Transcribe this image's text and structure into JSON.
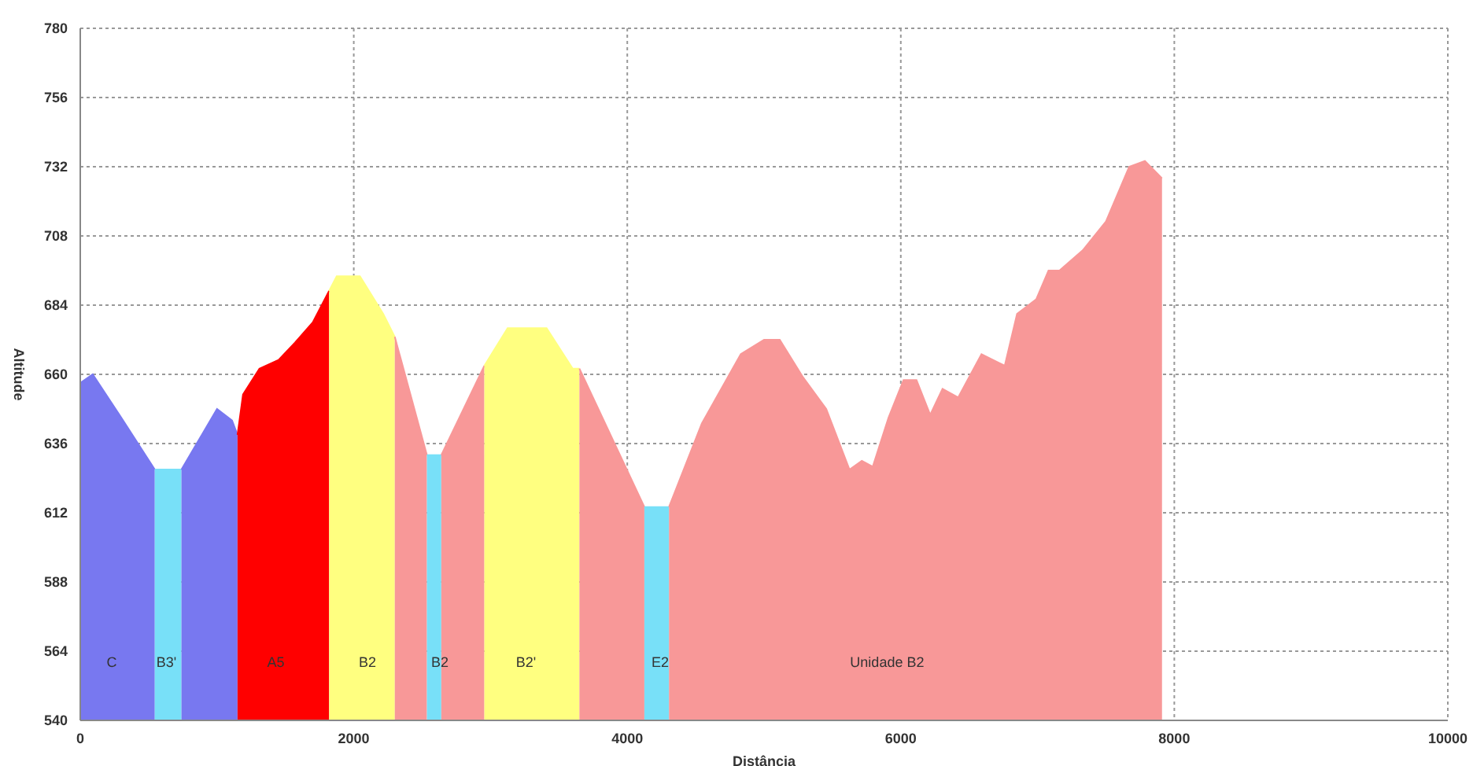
{
  "chart_data": {
    "type": "area",
    "xlabel": "Distância",
    "ylabel": "Altitude",
    "xlim": [
      0,
      10000
    ],
    "xticks": [
      0,
      2000,
      4000,
      6000,
      8000,
      10000
    ],
    "ylim": [
      540,
      780
    ],
    "yticks": [
      540,
      564,
      588,
      612,
      636,
      660,
      684,
      708,
      732,
      756,
      780
    ],
    "grid": true,
    "series": [
      {
        "color": "#7878f0",
        "x": [
          0,
          91,
          300,
          545
        ],
        "values": [
          657,
          660,
          645,
          627
        ]
      },
      {
        "color": "#78e0f8",
        "x": [
          545,
          740
        ],
        "values": [
          627,
          627
        ]
      },
      {
        "color": "#7878f0",
        "x": [
          740,
          1000,
          1110,
          1150
        ],
        "values": [
          627,
          648,
          644,
          639
        ]
      },
      {
        "color": "#ff0000",
        "x": [
          1150,
          1190,
          1310,
          1450,
          1570,
          1700,
          1820
        ],
        "values": [
          639,
          653,
          662,
          665,
          671,
          678,
          689
        ]
      },
      {
        "color": "#ffff80",
        "x": [
          1820,
          1875,
          2045,
          2215,
          2300
        ],
        "values": [
          689,
          694,
          694,
          681,
          673
        ]
      },
      {
        "color": "#f89898",
        "x": [
          2300,
          2535
        ],
        "values": [
          673,
          632
        ]
      },
      {
        "color": "#78e0f8",
        "x": [
          2535,
          2640
        ],
        "values": [
          632,
          632
        ]
      },
      {
        "color": "#f89898",
        "x": [
          2640,
          2955
        ],
        "values": [
          632,
          663
        ]
      },
      {
        "color": "#ffff80",
        "x": [
          2955,
          3125,
          3410,
          3600,
          3650
        ],
        "values": [
          663,
          676,
          676,
          662,
          662
        ]
      },
      {
        "color": "#f89898",
        "x": [
          3650,
          4125
        ],
        "values": [
          662,
          614
        ]
      },
      {
        "color": "#78e0f8",
        "x": [
          4125,
          4305
        ],
        "values": [
          614,
          614
        ]
      },
      {
        "color": "#f89898",
        "x": [
          4305,
          4545,
          4830,
          5000,
          5115,
          5285,
          5455,
          5625,
          5715,
          5795,
          5910,
          6020,
          6115,
          6215,
          6305,
          6420,
          6590,
          6760,
          6850,
          6990,
          7080,
          7160,
          7330,
          7500,
          7670,
          7785,
          7910
        ],
        "values": [
          614,
          643,
          667,
          672,
          672,
          659,
          648,
          627,
          630,
          628,
          645,
          658,
          658,
          646,
          655,
          652,
          667,
          663,
          681,
          686,
          696,
          696,
          703,
          713,
          732,
          734,
          728
        ]
      }
    ],
    "annotations": [
      "C",
      "B3'",
      "A5",
      "B2",
      "B2",
      "B2'",
      "E2",
      "Unidade B2"
    ]
  }
}
